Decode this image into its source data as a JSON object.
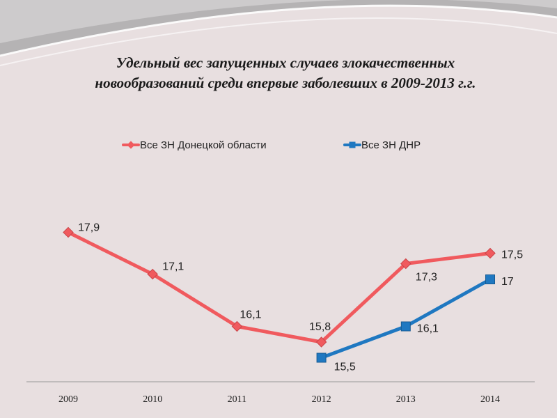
{
  "chart_data": {
    "type": "line",
    "title_lines": [
      "Удельный вес запущенных случаев злокачественных",
      "новообразований среди впервые заболевших в 2009-2013 г.г."
    ],
    "categories": [
      "2009",
      "2010",
      "2011",
      "2012",
      "2013",
      "2014"
    ],
    "series": [
      {
        "name": "Все ЗН Донецкой области",
        "color": "#f05a5e",
        "marker": "diamond",
        "values": [
          17.9,
          17.1,
          16.1,
          15.8,
          17.3,
          17.5
        ],
        "labels": [
          "17,9",
          "17,1",
          "16,1",
          "15,8",
          "17,3",
          "17,5"
        ]
      },
      {
        "name": "Все ЗН ДНР",
        "color": "#1f78c1",
        "marker": "square",
        "values": [
          null,
          null,
          null,
          15.5,
          16.1,
          17.0
        ],
        "labels": [
          "",
          "",
          "",
          "15,5",
          "16,1",
          "17"
        ]
      }
    ],
    "ylim": [
      15.2,
      18.0
    ],
    "grid": false,
    "legend_position": "top"
  }
}
